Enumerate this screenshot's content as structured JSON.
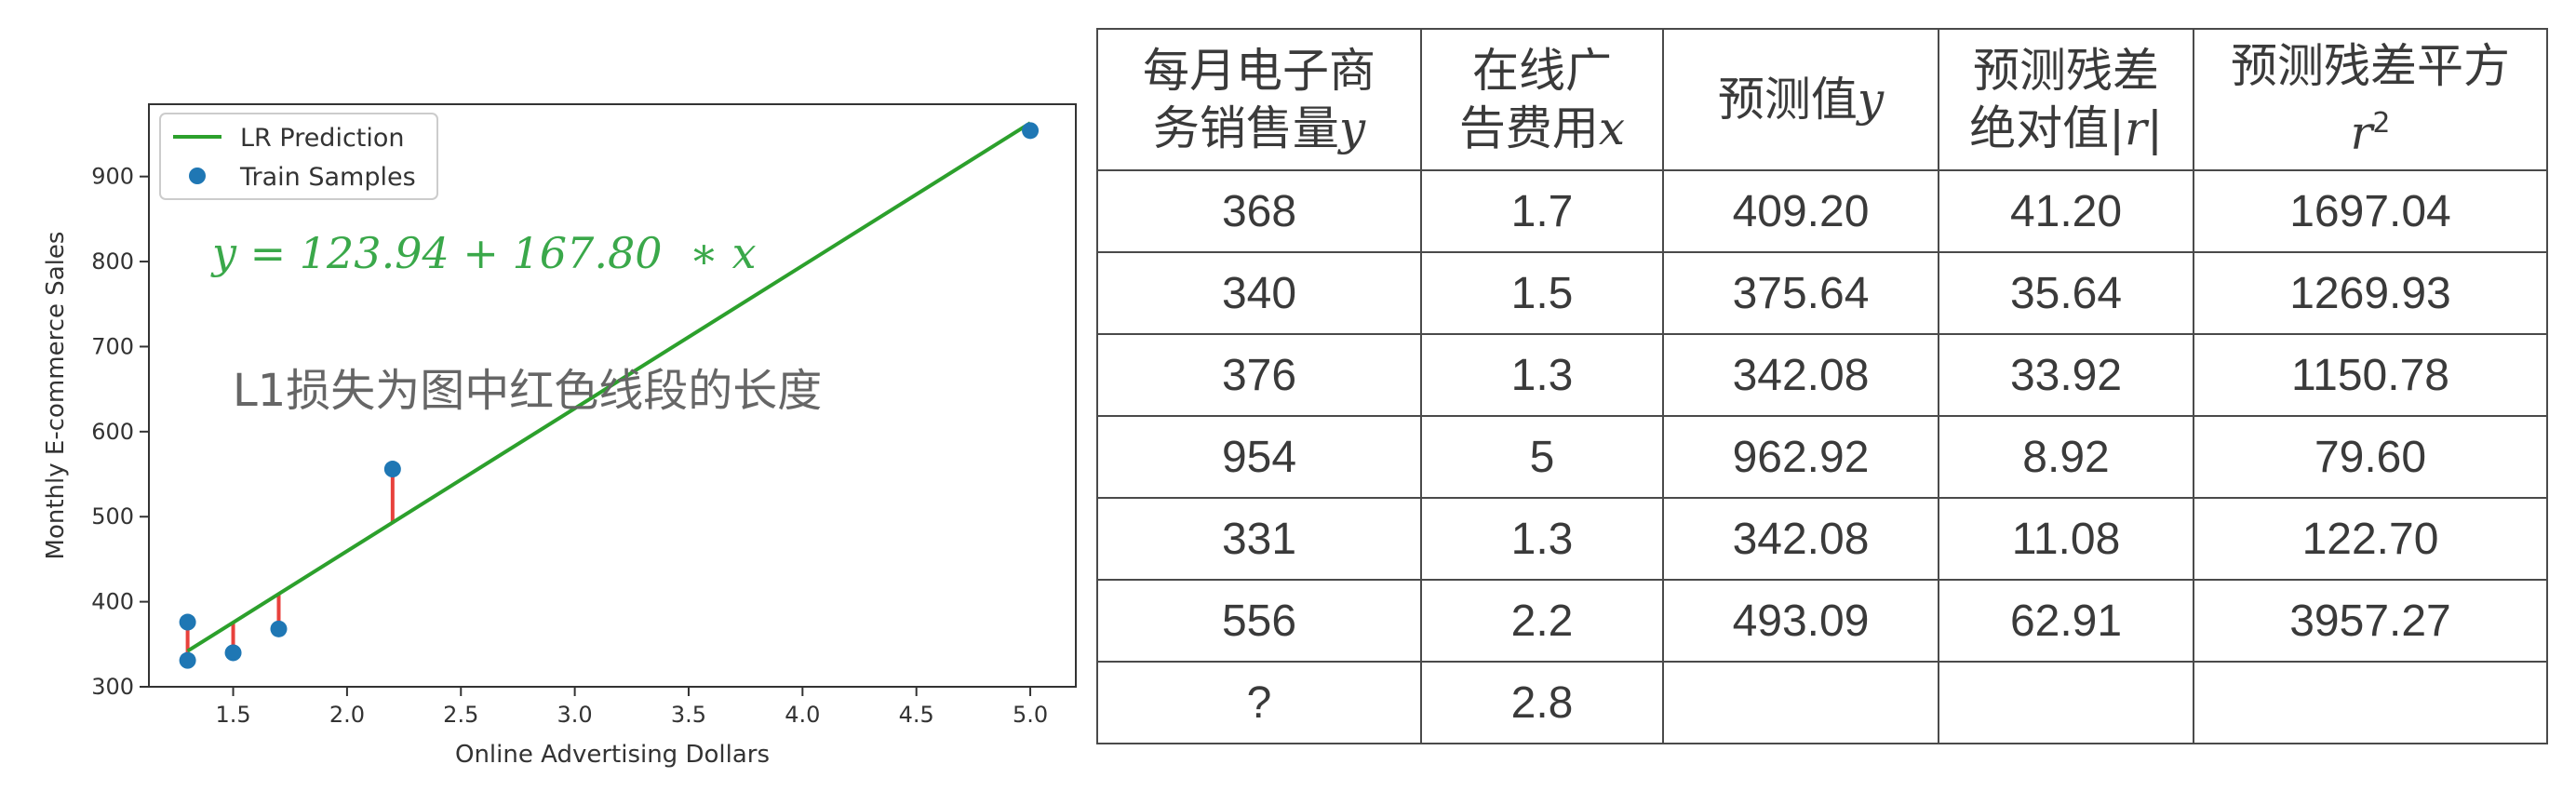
{
  "colors": {
    "line": "#2ca02c",
    "points": "#1f77b4",
    "residual": "#e8413c",
    "highlight": "#a31515",
    "equation": "#3aa84a",
    "annotation": "#666666",
    "text": "#3a3a3a"
  },
  "chart_data": {
    "type": "scatter",
    "xlabel": "Online Advertising Dollars",
    "ylabel": "Monthly E-commerce Sales",
    "xlim": [
      1.13,
      5.2
    ],
    "ylim": [
      300,
      985
    ],
    "xticks": [
      "1.5",
      "2.0",
      "2.5",
      "3.0",
      "3.5",
      "4.0",
      "4.5",
      "5.0"
    ],
    "yticks": [
      "300",
      "400",
      "500",
      "600",
      "700",
      "800",
      "900"
    ],
    "grid": false,
    "legend_position": "top-left",
    "legend": [
      "LR Prediction",
      "Train Samples"
    ],
    "regression": {
      "intercept": 123.94,
      "slope": 167.8,
      "x_range": [
        1.3,
        5.0
      ]
    },
    "series": [
      {
        "name": "Train Samples",
        "x": [
          1.7,
          1.5,
          1.3,
          5.0,
          1.3,
          2.2
        ],
        "y": [
          368,
          340,
          376,
          954,
          331,
          556
        ]
      }
    ],
    "equation_text": "y = 123.94 + 167.80  ∗ x",
    "annotation_text": "L1损失为图中红色线段的长度"
  },
  "table": {
    "headers": [
      [
        "每月电子商",
        "务销售量",
        "y"
      ],
      [
        "在线广",
        "告费用",
        "x"
      ],
      [
        "预测值",
        "y"
      ],
      [
        "预测残差",
        "绝对值|",
        "r",
        "|"
      ],
      [
        "预测残差平方",
        "r",
        "2"
      ]
    ],
    "rows": [
      [
        "368",
        "1.7",
        "409.20",
        "41.20",
        "1697.04"
      ],
      [
        "340",
        "1.5",
        "375.64",
        "35.64",
        "1269.93"
      ],
      [
        "376",
        "1.3",
        "342.08",
        "33.92",
        "1150.78"
      ],
      [
        "954",
        "5",
        "962.92",
        "8.92",
        "79.60"
      ],
      [
        "331",
        "1.3",
        "342.08",
        "11.08",
        "122.70"
      ],
      [
        "556",
        "2.2",
        "493.09",
        "62.91",
        "3957.27"
      ],
      [
        "?",
        "2.8",
        "",
        "",
        ""
      ]
    ]
  }
}
